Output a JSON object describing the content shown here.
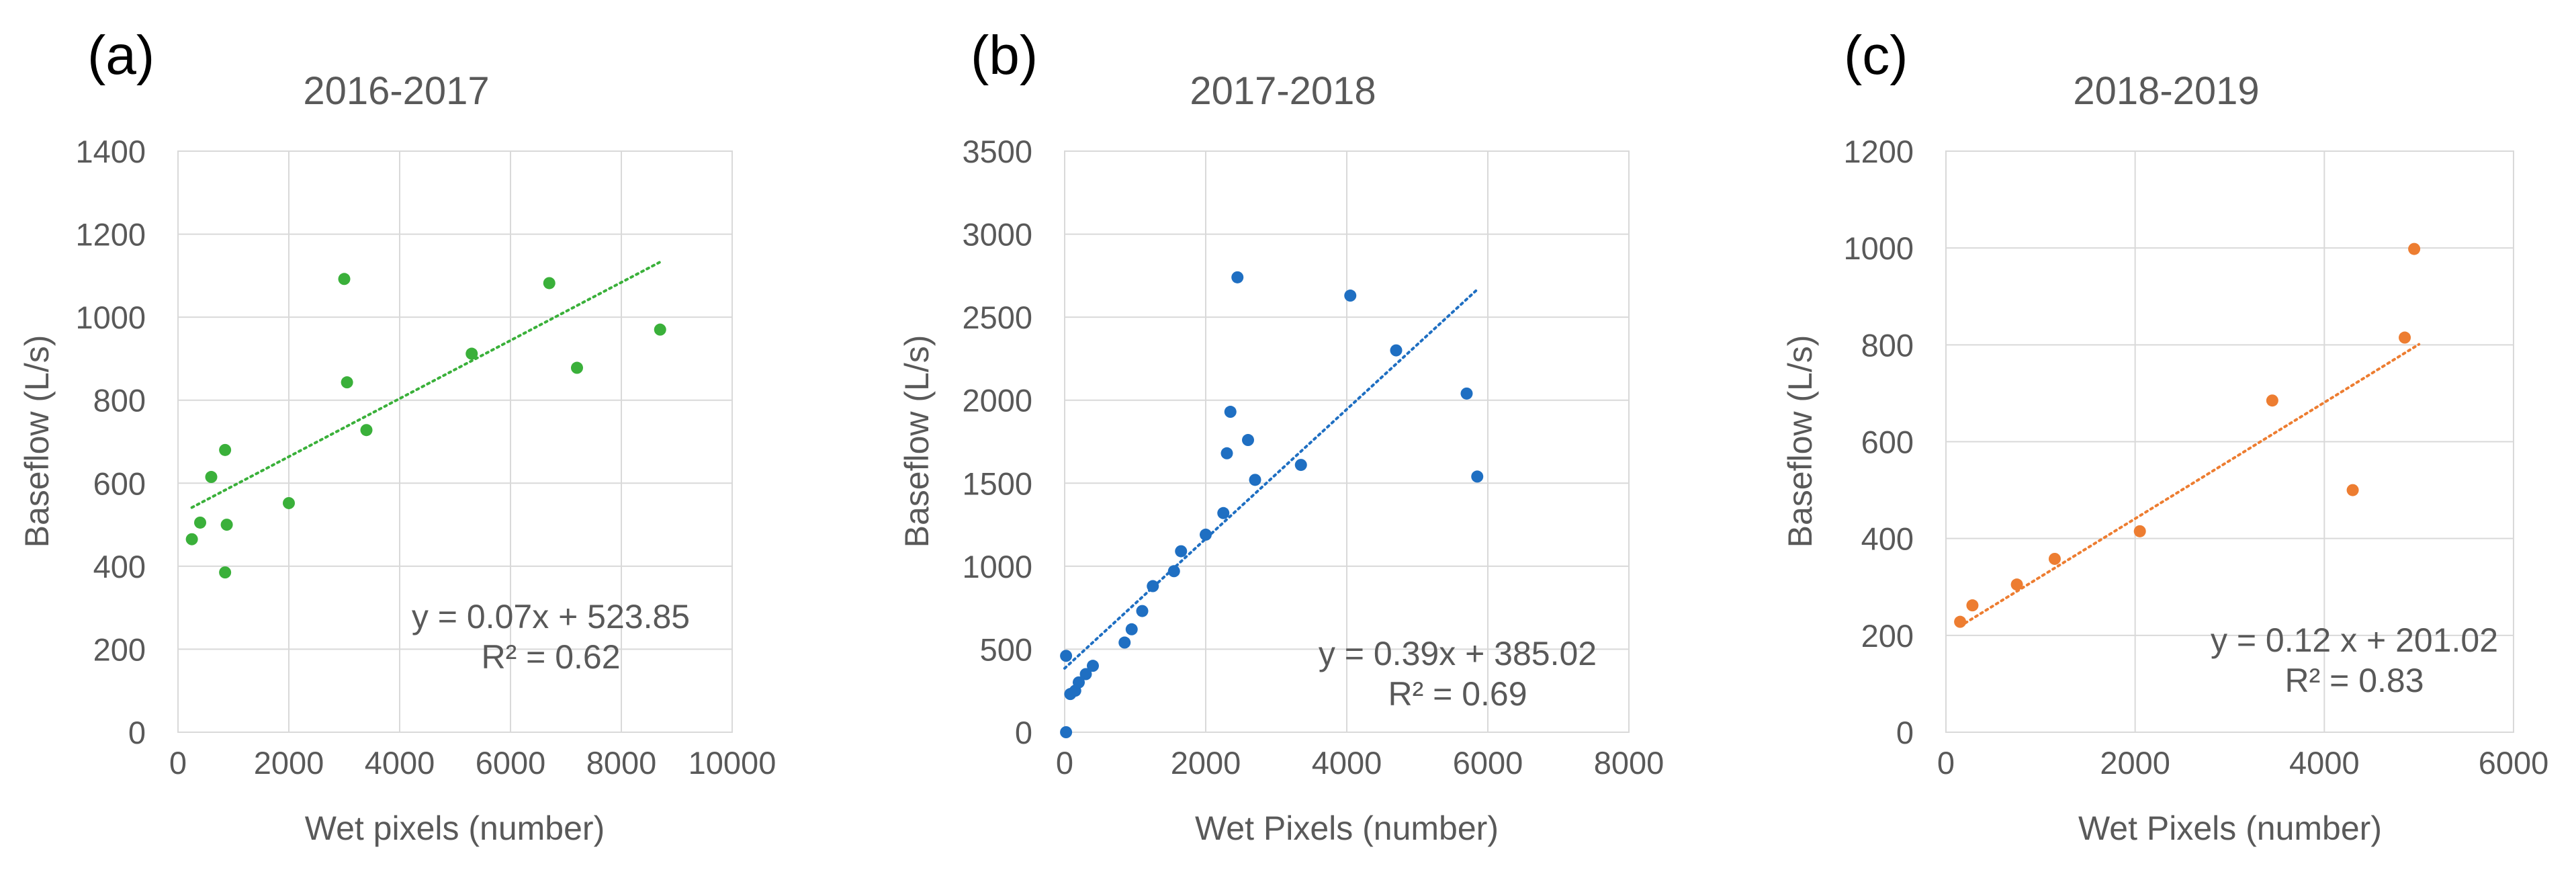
{
  "chart_data": [
    {
      "type": "scatter",
      "panel_label": "(a)",
      "title": "2016-2017",
      "xlabel": "Wet pixels (number)",
      "ylabel": "Baseflow (L/s)",
      "xlim": [
        0,
        10000
      ],
      "ylim": [
        0,
        1400
      ],
      "xticks": [
        0,
        2000,
        4000,
        6000,
        8000,
        10000
      ],
      "yticks": [
        0,
        200,
        400,
        600,
        800,
        1000,
        1200,
        1400
      ],
      "xtick_labels": [
        "0",
        "2000",
        "4000",
        "6000",
        "8000",
        "10000"
      ],
      "ytick_labels": [
        "0",
        "200",
        "400",
        "600",
        "800",
        "1000",
        "1200",
        "1400"
      ],
      "grid": true,
      "color": "#3ab03a",
      "points": [
        {
          "x": 250,
          "y": 465
        },
        {
          "x": 400,
          "y": 505
        },
        {
          "x": 600,
          "y": 615
        },
        {
          "x": 850,
          "y": 680
        },
        {
          "x": 850,
          "y": 385
        },
        {
          "x": 880,
          "y": 500
        },
        {
          "x": 2000,
          "y": 552
        },
        {
          "x": 3000,
          "y": 1092
        },
        {
          "x": 3050,
          "y": 843
        },
        {
          "x": 3400,
          "y": 728
        },
        {
          "x": 5300,
          "y": 912
        },
        {
          "x": 6700,
          "y": 1082
        },
        {
          "x": 7200,
          "y": 878
        },
        {
          "x": 8700,
          "y": 970
        }
      ],
      "trendline": {
        "slope": 0.07,
        "intercept": 523.85,
        "x_range": [
          250,
          8700
        ]
      },
      "equation": "y = 0.07x + 523.85",
      "r_squared": "R² = 0.62"
    },
    {
      "type": "scatter",
      "panel_label": "(b)",
      "title": "2017-2018",
      "xlabel": "Wet Pixels (number)",
      "ylabel": "Baseflow (L/s)",
      "xlim": [
        0,
        8000
      ],
      "ylim": [
        0,
        3500
      ],
      "xticks": [
        0,
        2000,
        4000,
        6000,
        8000
      ],
      "yticks": [
        0,
        500,
        1000,
        1500,
        2000,
        2500,
        3000,
        3500
      ],
      "xtick_labels": [
        "0",
        "2000",
        "4000",
        "6000",
        "8000"
      ],
      "ytick_labels": [
        "0",
        "500",
        "1000",
        "1500",
        "2000",
        "2500",
        "3000",
        "3500"
      ],
      "grid": true,
      "color": "#1f6fc2",
      "points": [
        {
          "x": 20,
          "y": 0
        },
        {
          "x": 20,
          "y": 460
        },
        {
          "x": 80,
          "y": 230
        },
        {
          "x": 150,
          "y": 250
        },
        {
          "x": 200,
          "y": 300
        },
        {
          "x": 300,
          "y": 350
        },
        {
          "x": 400,
          "y": 400
        },
        {
          "x": 850,
          "y": 540
        },
        {
          "x": 950,
          "y": 620
        },
        {
          "x": 1100,
          "y": 730
        },
        {
          "x": 1250,
          "y": 880
        },
        {
          "x": 1550,
          "y": 970
        },
        {
          "x": 1650,
          "y": 1090
        },
        {
          "x": 2000,
          "y": 1190
        },
        {
          "x": 2250,
          "y": 1320
        },
        {
          "x": 2300,
          "y": 1680
        },
        {
          "x": 2350,
          "y": 1930
        },
        {
          "x": 2450,
          "y": 2740
        },
        {
          "x": 2600,
          "y": 1760
        },
        {
          "x": 2700,
          "y": 1520
        },
        {
          "x": 3350,
          "y": 1610
        },
        {
          "x": 4050,
          "y": 2630
        },
        {
          "x": 4700,
          "y": 2300
        },
        {
          "x": 5700,
          "y": 2040
        },
        {
          "x": 5850,
          "y": 1540
        }
      ],
      "trendline": {
        "slope": 0.39,
        "intercept": 385.02,
        "x_range": [
          0,
          5850
        ]
      },
      "equation": "y = 0.39x + 385.02",
      "r_squared": "R² = 0.69"
    },
    {
      "type": "scatter",
      "panel_label": "(c)",
      "title": "2018-2019",
      "xlabel": "Wet Pixels (number)",
      "ylabel": "Baseflow (L/s)",
      "xlim": [
        0,
        6000
      ],
      "ylim": [
        0,
        1200
      ],
      "xticks": [
        0,
        2000,
        4000,
        6000
      ],
      "yticks": [
        0,
        200,
        400,
        600,
        800,
        1000,
        1200
      ],
      "xtick_labels": [
        "0",
        "2000",
        "4000",
        "6000"
      ],
      "ytick_labels": [
        "0",
        "200",
        "400",
        "600",
        "800",
        "1000",
        "1200"
      ],
      "grid": true,
      "color": "#ed7d31",
      "points": [
        {
          "x": 150,
          "y": 228
        },
        {
          "x": 280,
          "y": 262
        },
        {
          "x": 750,
          "y": 305
        },
        {
          "x": 1150,
          "y": 358
        },
        {
          "x": 2050,
          "y": 415
        },
        {
          "x": 3450,
          "y": 685
        },
        {
          "x": 4300,
          "y": 500
        },
        {
          "x": 4850,
          "y": 815
        },
        {
          "x": 4950,
          "y": 998
        }
      ],
      "trendline": {
        "slope": 0.12,
        "intercept": 201.02,
        "x_range": [
          150,
          5000
        ]
      },
      "equation": "y = 0.12 x + 201.02",
      "r_squared": "R² = 0.83"
    }
  ]
}
